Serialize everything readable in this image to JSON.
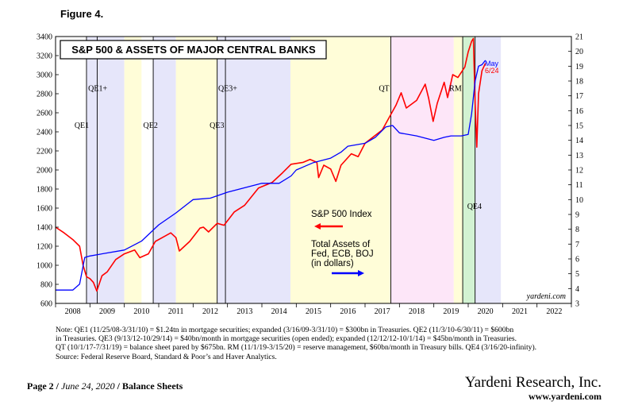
{
  "figure_label": "Figure 4.",
  "chart_data": {
    "type": "line",
    "title": "S&P 500 & ASSETS OF MAJOR CENTRAL BANKS",
    "x_range": [
      2008.0,
      2023.0
    ],
    "x_tick_labels": [
      "2008",
      "2009",
      "2010",
      "2011",
      "2012",
      "2013",
      "2014",
      "2015",
      "2016",
      "2017",
      "2018",
      "2019",
      "2020",
      "2021",
      "2022"
    ],
    "y_left": {
      "range": [
        600,
        3400
      ],
      "step": 200
    },
    "y_right": {
      "range": [
        3,
        21
      ],
      "step": 1
    },
    "series": [
      {
        "name": "S&P 500 Index",
        "axis": "left",
        "color": "#ff0000",
        "x": [
          2008.0,
          2008.25,
          2008.5,
          2008.7,
          2008.8,
          2008.9,
          2009.0,
          2009.1,
          2009.2,
          2009.35,
          2009.5,
          2009.75,
          2010.0,
          2010.3,
          2010.45,
          2010.7,
          2010.9,
          2011.2,
          2011.35,
          2011.5,
          2011.6,
          2011.75,
          2011.9,
          2012.2,
          2012.3,
          2012.45,
          2012.7,
          2012.9,
          2013.2,
          2013.5,
          2013.9,
          2014.3,
          2014.6,
          2014.85,
          2015.2,
          2015.4,
          2015.6,
          2015.65,
          2015.8,
          2016.0,
          2016.15,
          2016.3,
          2016.6,
          2016.8,
          2017.0,
          2017.5,
          2017.9,
          2018.05,
          2018.2,
          2018.5,
          2018.75,
          2018.85,
          2018.98,
          2019.1,
          2019.3,
          2019.4,
          2019.55,
          2019.7,
          2019.9,
          2020.0,
          2020.1,
          2020.15,
          2020.2,
          2020.25,
          2020.3,
          2020.4,
          2020.5
        ],
        "y": [
          1400,
          1340,
          1270,
          1200,
          1000,
          880,
          860,
          820,
          730,
          890,
          930,
          1060,
          1120,
          1160,
          1080,
          1120,
          1250,
          1310,
          1340,
          1290,
          1150,
          1200,
          1250,
          1390,
          1400,
          1350,
          1440,
          1420,
          1560,
          1630,
          1810,
          1870,
          1970,
          2060,
          2080,
          2110,
          2080,
          1920,
          2050,
          2010,
          1880,
          2050,
          2170,
          2140,
          2280,
          2420,
          2680,
          2810,
          2650,
          2730,
          2900,
          2750,
          2510,
          2700,
          2920,
          2760,
          3000,
          2970,
          3080,
          3240,
          3350,
          3380,
          2700,
          2240,
          2800,
          3040,
          3120
        ]
      },
      {
        "name": "Total Assets of Fed, ECB, BOJ (in dollars)",
        "axis": "right",
        "color": "#0000ff",
        "x": [
          2008.0,
          2008.5,
          2008.7,
          2008.85,
          2009.0,
          2009.5,
          2010.0,
          2010.5,
          2011.0,
          2011.5,
          2012.0,
          2012.5,
          2013.0,
          2013.5,
          2014.0,
          2014.5,
          2014.85,
          2015.0,
          2015.5,
          2016.0,
          2016.3,
          2016.5,
          2017.0,
          2017.3,
          2017.6,
          2017.8,
          2018.0,
          2018.5,
          2019.0,
          2019.3,
          2019.5,
          2019.8,
          2020.0,
          2020.1,
          2020.2,
          2020.3,
          2020.4,
          2020.5
        ],
        "y": [
          3.9,
          3.9,
          4.3,
          6.1,
          6.2,
          6.4,
          6.6,
          7.2,
          8.3,
          9.1,
          10.0,
          10.1,
          10.5,
          10.8,
          11.1,
          11.1,
          11.6,
          12.0,
          12.5,
          12.8,
          13.2,
          13.6,
          13.8,
          14.2,
          14.9,
          15.0,
          14.5,
          14.3,
          14.0,
          14.2,
          14.3,
          14.3,
          14.4,
          15.8,
          18.0,
          19.0,
          19.1,
          19.4
        ]
      }
    ],
    "shaded_periods": [
      {
        "from": 2008.9,
        "to": 2010.0,
        "color": "#e6e6fa"
      },
      {
        "from": 2010.0,
        "to": 2010.5,
        "color": "#fffdd8"
      },
      {
        "from": 2010.84,
        "to": 2011.5,
        "color": "#e6e6fa"
      },
      {
        "from": 2011.5,
        "to": 2012.7,
        "color": "#fffdd8"
      },
      {
        "from": 2012.7,
        "to": 2014.83,
        "color": "#e6e6fa"
      },
      {
        "from": 2014.83,
        "to": 2017.75,
        "color": "#fffdd8"
      },
      {
        "from": 2017.75,
        "to": 2019.58,
        "color": "#fde6f8"
      },
      {
        "from": 2019.58,
        "to": 2019.84,
        "color": "#fffdd8"
      },
      {
        "from": 2019.84,
        "to": 2020.2,
        "color": "#d2f2d2"
      },
      {
        "from": 2020.2,
        "to": 2020.95,
        "color": "#e6e6fa"
      }
    ],
    "vertical_lines": [
      2008.9,
      2009.21,
      2010.84,
      2012.7,
      2012.94,
      2017.75,
      2019.84,
      2020.2
    ],
    "annotations": [
      {
        "text": "QE1",
        "x": 2008.55,
        "y": 2440
      },
      {
        "text": "QE1+",
        "x": 2008.95,
        "y": 2830
      },
      {
        "text": "QE2",
        "x": 2010.55,
        "y": 2440
      },
      {
        "text": "QE3+",
        "x": 2012.73,
        "y": 2830
      },
      {
        "text": "QE3",
        "x": 2012.48,
        "y": 2440
      },
      {
        "text": "QT",
        "x": 2017.4,
        "y": 2830
      },
      {
        "text": "RM",
        "x": 2019.45,
        "y": 2830
      },
      {
        "text": "QE4",
        "x": 2019.97,
        "y": 1590
      }
    ],
    "legend": [
      {
        "text": "S&P 500 Index",
        "color": "#ff0000",
        "arrow": "left"
      },
      {
        "text": "Total Assets of",
        "color": "#0000ff"
      },
      {
        "text": "Fed, ECB, BOJ",
        "color": "#0000ff"
      },
      {
        "text": "(in dollars)",
        "color": "#0000ff",
        "arrow": "right"
      }
    ],
    "end_labels": {
      "line1": "May",
      "line2": "6/24",
      "colors": [
        "#0000ff",
        "#ff0000"
      ]
    },
    "watermark": "yardeni.com"
  },
  "footnote": {
    "line1": "Note: QE1 (11/25/08-3/31/10) = $1.24tn in mortgage securities; expanded (3/16/09-3/31/10) = $300bn in Treasuries. QE2 (11/3/10-6/30/11) = $600bn",
    "line2": "in Treasuries. QE3 (9/13/12-10/29/14) = $40bn/month in mortgage securities (open ended); expanded (12/12/12-10/1/14) = $45bn/month in Treasuries.",
    "line3": "QT (10/1/17-7/31/19) = balance sheet pared by $675bn. RM (11/1/19-3/15/20) = reserve management, $60bn/month in Treasury bills. QE4 (3/16/20-infinity).",
    "line4": "Source: Federal Reserve Board, Standard & Poor’s and Haver Analytics."
  },
  "footer": {
    "page": "Page 2",
    "separator": " / ",
    "date": "June 24, 2020",
    "section_separator": " / ",
    "section": "Balance Sheets",
    "company": "Yardeni Research, Inc.",
    "website": "www.yardeni.com"
  }
}
